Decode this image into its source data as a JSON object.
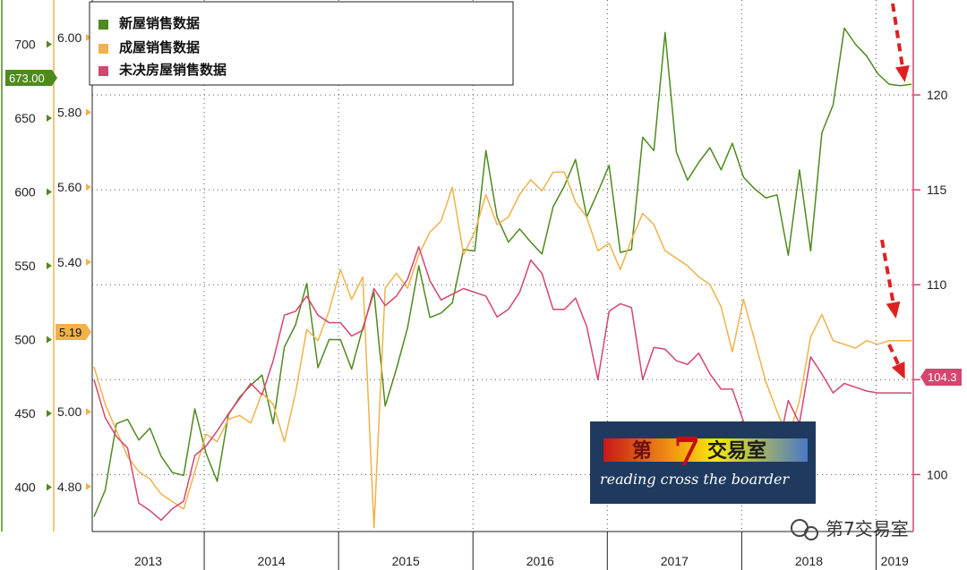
{
  "colors": {
    "new_home": "#4f8a1e",
    "existing_home": "#f0b24a",
    "pending_home": "#d4466e",
    "arrow": "#e02020",
    "grid": "#555555"
  },
  "legend": {
    "new_home": "新屋销售数据",
    "existing_home": "成屋销售数据",
    "pending_home": "未决房屋销售数据"
  },
  "axes": {
    "left_outer": {
      "ticks": [
        "400",
        "450",
        "500",
        "550",
        "600",
        "650",
        "700"
      ]
    },
    "left_inner": {
      "ticks": [
        "4.80",
        "5.00",
        "5.40",
        "5.60",
        "5.80",
        "6.00"
      ]
    },
    "right": {
      "ticks": [
        "100",
        "105",
        "110",
        "115",
        "120"
      ]
    }
  },
  "tags": {
    "new_home_last": "673.00",
    "existing_home_last": "5.19",
    "pending_home_last": "104.3"
  },
  "years": [
    "2013",
    "2014",
    "2015",
    "2016",
    "2017",
    "2018",
    "2019"
  ],
  "logo": {
    "cn_first": "第",
    "cn_seven": "7",
    "cn_rest": "交易室",
    "en": "reading cross the boarder"
  },
  "watermark": "第7交易室",
  "chart_data": {
    "type": "line",
    "x": [
      "2013-03",
      "2013-04",
      "2013-05",
      "2013-06",
      "2013-07",
      "2013-08",
      "2013-09",
      "2013-10",
      "2013-11",
      "2013-12",
      "2014-01",
      "2014-02",
      "2014-03",
      "2014-04",
      "2014-05",
      "2014-06",
      "2014-07",
      "2014-08",
      "2014-09",
      "2014-10",
      "2014-11",
      "2014-12",
      "2015-01",
      "2015-02",
      "2015-03",
      "2015-04",
      "2015-05",
      "2015-06",
      "2015-07",
      "2015-08",
      "2015-09",
      "2015-10",
      "2015-11",
      "2015-12",
      "2016-01",
      "2016-02",
      "2016-03",
      "2016-04",
      "2016-05",
      "2016-06",
      "2016-07",
      "2016-08",
      "2016-09",
      "2016-10",
      "2016-11",
      "2016-12",
      "2017-01",
      "2017-02",
      "2017-03",
      "2017-04",
      "2017-05",
      "2017-06",
      "2017-07",
      "2017-08",
      "2017-09",
      "2017-10",
      "2017-11",
      "2017-12",
      "2018-01",
      "2018-02",
      "2018-03",
      "2018-04",
      "2018-05",
      "2018-06",
      "2018-07",
      "2018-08",
      "2018-09",
      "2018-10",
      "2018-11",
      "2018-12",
      "2019-01",
      "2019-02",
      "2019-03",
      "2019-04"
    ],
    "series": [
      {
        "name": "新屋销售数据",
        "axis": "left_outer",
        "values": [
          380,
          398,
          443,
          446,
          432,
          440,
          421,
          410,
          408,
          453,
          423,
          404,
          449,
          461,
          469,
          476,
          443,
          495,
          510,
          538,
          481,
          500,
          500,
          480,
          508,
          532,
          455,
          480,
          508,
          550,
          515,
          518,
          525,
          561,
          560,
          628,
          583,
          566,
          575,
          566,
          558,
          590,
          604,
          622,
          583,
          600,
          618,
          559,
          561,
          637,
          628,
          708,
          627,
          608,
          620,
          630,
          615,
          633,
          610,
          602,
          596,
          598,
          557,
          615,
          560,
          640,
          659,
          711,
          700,
          692,
          680,
          673,
          672,
          673
        ],
        "show": "line"
      },
      {
        "name": "成屋销售数据",
        "axis": "left_inner",
        "values": [
          5.12,
          5.02,
          4.95,
          4.88,
          4.84,
          4.82,
          4.78,
          4.76,
          4.74,
          4.84,
          4.94,
          4.92,
          4.98,
          4.99,
          4.97,
          5.05,
          5.02,
          4.92,
          5.05,
          5.22,
          5.19,
          5.27,
          5.38,
          5.3,
          5.36,
          4.69,
          5.33,
          5.37,
          5.33,
          5.42,
          5.48,
          5.51,
          5.6,
          5.42,
          5.48,
          5.58,
          5.5,
          5.52,
          5.58,
          5.62,
          5.59,
          5.64,
          5.64,
          5.56,
          5.52,
          5.43,
          5.45,
          5.38,
          5.46,
          5.53,
          5.5,
          5.43,
          5.41,
          5.39,
          5.36,
          5.34,
          5.28,
          5.16,
          5.3,
          5.19,
          5.08,
          5.0,
          4.93,
          5.03,
          5.2,
          5.26,
          5.19,
          5.18,
          5.17,
          5.19,
          5.18,
          5.19,
          5.19,
          5.19
        ],
        "show": "line"
      },
      {
        "name": "未决房屋销售数据",
        "axis": "right",
        "values": [
          105,
          103,
          102,
          101.4,
          98.5,
          98.1,
          97.6,
          98.2,
          98.6,
          101,
          101.5,
          102.3,
          103.2,
          104,
          104.8,
          104.2,
          106,
          108.4,
          108.6,
          109.4,
          108.4,
          108,
          108,
          107.3,
          107.6,
          109.8,
          108.9,
          109.4,
          110.3,
          112,
          110.2,
          109.2,
          109.5,
          109.8,
          109.6,
          109.4,
          108.3,
          108.7,
          109.6,
          111.3,
          110.6,
          108.7,
          108.7,
          109.3,
          107.8,
          105,
          108.6,
          109,
          108.8,
          105,
          106.7,
          106.6,
          106,
          105.8,
          106.4,
          105.3,
          104.5,
          104.5,
          102.8,
          101.1,
          99.3,
          101.1,
          103.9,
          102.7,
          106.2,
          105.3,
          104.3,
          104.8,
          104.6,
          104.4,
          104.3,
          104.3,
          104.3,
          104.3
        ],
        "show": "line"
      }
    ],
    "ylim_left_outer": [
      370,
      730
    ],
    "ylim_left_inner": [
      4.68,
      6.1
    ],
    "ylim_right": [
      97,
      125
    ],
    "grid": true,
    "legend_position": "top-left"
  }
}
